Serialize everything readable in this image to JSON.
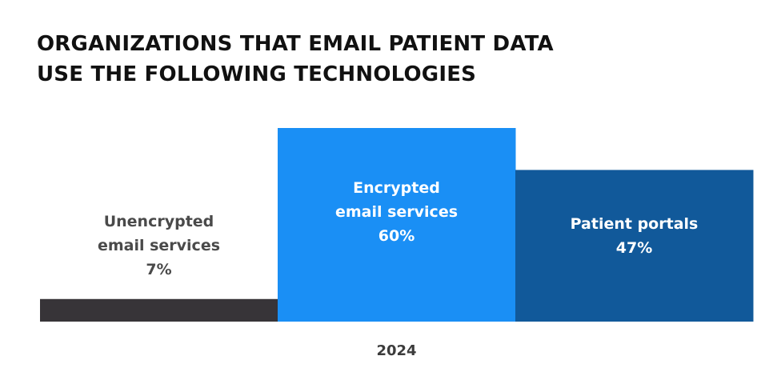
{
  "title_lines": [
    "ORGANIZATIONS THAT EMAIL PATIENT DATA",
    "USE THE FOLLOWING TECHNOLOGIES"
  ],
  "chart_data": {
    "type": "bar",
    "title": "ORGANIZATIONS THAT EMAIL PATIENT DATA USE THE FOLLOWING TECHNOLOGIES",
    "x": [
      "2024"
    ],
    "series": [
      {
        "name": "Unencrypted email services",
        "label_lines": [
          "Unencrypted",
          "email services",
          "7%"
        ],
        "values": [
          7
        ],
        "color": "#373438",
        "label_color": "#4a4a4a"
      },
      {
        "name": "Encrypted email services",
        "label_lines": [
          "Encrypted",
          "email services",
          "60%"
        ],
        "values": [
          60
        ],
        "color": "#1a8ff5",
        "label_color": "#ffffff"
      },
      {
        "name": "Patient portals",
        "label_lines": [
          "Patient portals",
          "47%"
        ],
        "values": [
          47
        ],
        "color": "#11599a",
        "label_color": "#ffffff"
      }
    ],
    "ylim": [
      0,
      60
    ],
    "grid": false,
    "legend": "none"
  }
}
